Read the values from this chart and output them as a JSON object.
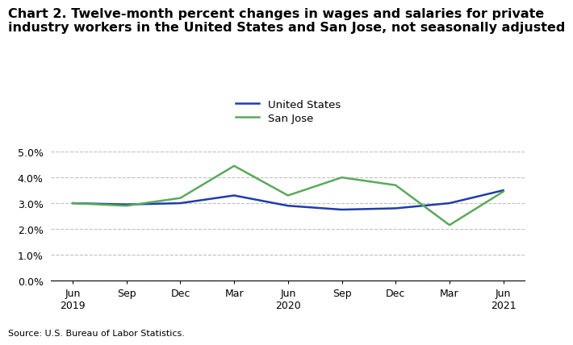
{
  "title_line1": "Chart 2. Twelve-month percent changes in wages and salaries for private",
  "title_line2": "industry workers in the United States and San Jose, not seasonally adjusted",
  "x_labels": [
    "Jun\n2019",
    "Sep",
    "Dec",
    "Mar",
    "Jun\n2020",
    "Sep",
    "Dec",
    "Mar",
    "Jun\n2021"
  ],
  "us_values": [
    0.03,
    0.0295,
    0.03,
    0.033,
    0.029,
    0.0275,
    0.028,
    0.03,
    0.035
  ],
  "sj_values": [
    0.03,
    0.029,
    0.032,
    0.0445,
    0.033,
    0.04,
    0.037,
    0.0215,
    0.0345
  ],
  "us_color": "#1f3daa",
  "sj_color": "#5aaa5a",
  "us_label": "United States",
  "sj_label": "San Jose",
  "ylim_min": 0.0,
  "ylim_max": 0.055,
  "yticks": [
    0.0,
    0.01,
    0.02,
    0.03,
    0.04,
    0.05
  ],
  "source": "Source: U.S. Bureau of Labor Statistics.",
  "grid_color": "#c0c0c0",
  "line_width": 1.8,
  "title_fontsize": 11.5,
  "legend_fontsize": 9.5,
  "tick_fontsize": 9,
  "source_fontsize": 8
}
